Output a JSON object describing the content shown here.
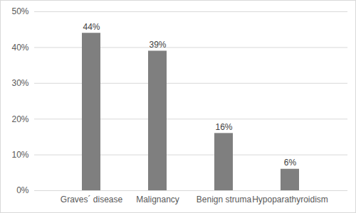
{
  "chart_data": {
    "type": "bar",
    "categories": [
      "Graves´ disease",
      "Malignancy",
      "Benign struma",
      "Hypoparathyroidism"
    ],
    "values": [
      44,
      39,
      16,
      6
    ],
    "value_labels": [
      "44%",
      "39%",
      "16%",
      "6%"
    ],
    "data_labels": true,
    "color": "#7f7f7f",
    "ylim": [
      0,
      50
    ],
    "yticks": [
      {
        "value": 0,
        "label": "0%"
      },
      {
        "value": 10,
        "label": "10%"
      },
      {
        "value": 20,
        "label": "20%"
      },
      {
        "value": 30,
        "label": "30%"
      },
      {
        "value": 40,
        "label": "40%"
      },
      {
        "value": 50,
        "label": "50%"
      }
    ],
    "grid": true
  }
}
